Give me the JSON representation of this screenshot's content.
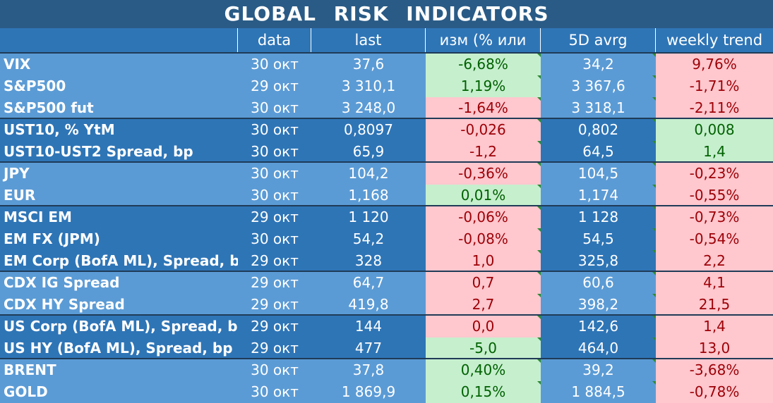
{
  "title": "GLOBAL   RISK   INDICATORS",
  "headers": [
    "",
    "data",
    "last",
    "изм (% или бп)",
    "5D avrg",
    "weekly trend"
  ],
  "colors": {
    "light_group": "#5b9bd5",
    "dark_group": "#2e75b6",
    "green_fill": "#c6efce",
    "green_text": "#006100",
    "red_fill": "#ffc7ce",
    "red_text": "#9c0006"
  },
  "rows": [
    {
      "name": "VIX",
      "date": "30 окт",
      "last": "37,6",
      "chg": "-6,68%",
      "chg_color": "green",
      "avg": "34,2",
      "trend": "9,76%",
      "trend_color": "red",
      "group": 0
    },
    {
      "name": "S&P500",
      "date": "29 окт",
      "last": "3 310,1",
      "chg": "1,19%",
      "chg_color": "green",
      "avg": "3 367,6",
      "trend": "-1,71%",
      "trend_color": "red",
      "group": 0
    },
    {
      "name": "S&P500 fut",
      "date": "30 окт",
      "last": "3 248,0",
      "chg": "-1,64%",
      "chg_color": "red",
      "avg": "3 318,1",
      "trend": "-2,11%",
      "trend_color": "red",
      "group": 0
    },
    {
      "name": "UST10, % YtM",
      "date": "30 окт",
      "last": "0,8097",
      "chg": "-0,026",
      "chg_color": "red",
      "avg": "0,802",
      "trend": "0,008",
      "trend_color": "green",
      "group": 1
    },
    {
      "name": "UST10-UST2 Spread, bp",
      "date": "30 окт",
      "last": "65,9",
      "chg": "-1,2",
      "chg_color": "red",
      "avg": "64,5",
      "trend": "1,4",
      "trend_color": "green",
      "group": 1
    },
    {
      "name": "JPY",
      "date": "30 окт",
      "last": "104,2",
      "chg": "-0,36%",
      "chg_color": "red",
      "avg": "104,5",
      "trend": "-0,23%",
      "trend_color": "red",
      "group": 0
    },
    {
      "name": "EUR",
      "date": "30 окт",
      "last": "1,168",
      "chg": "0,01%",
      "chg_color": "green",
      "avg": "1,174",
      "trend": "-0,55%",
      "trend_color": "red",
      "group": 0
    },
    {
      "name": "MSCI EM",
      "date": "29 окт",
      "last": "1 120",
      "chg": "-0,06%",
      "chg_color": "red",
      "avg": "1 128",
      "trend": "-0,73%",
      "trend_color": "red",
      "group": 1
    },
    {
      "name": "EM FX (JPM)",
      "date": "30 окт",
      "last": "54,2",
      "chg": "-0,08%",
      "chg_color": "red",
      "avg": "54,5",
      "trend": "-0,54%",
      "trend_color": "red",
      "group": 1
    },
    {
      "name": "EM Corp (BofA ML), Spread, bp",
      "date": "29 окт",
      "last": "328",
      "chg": "1,0",
      "chg_color": "red",
      "avg": "325,8",
      "trend": "2,2",
      "trend_color": "red",
      "group": 1
    },
    {
      "name": "CDX IG Spread",
      "date": "29 окт",
      "last": "64,7",
      "chg": "0,7",
      "chg_color": "red",
      "avg": "60,6",
      "trend": "4,1",
      "trend_color": "red",
      "group": 0
    },
    {
      "name": "CDX HY Spread",
      "date": "29 окт",
      "last": "419,8",
      "chg": "2,7",
      "chg_color": "red",
      "avg": "398,2",
      "trend": "21,5",
      "trend_color": "red",
      "group": 0
    },
    {
      "name": "US Corp (BofA ML), Spread, bp",
      "date": "29 окт",
      "last": "144",
      "chg": "0,0",
      "chg_color": "red",
      "avg": "142,6",
      "trend": "1,4",
      "trend_color": "red",
      "group": 1
    },
    {
      "name": "US HY (BofA ML), Spread, bp",
      "date": "29 окт",
      "last": "477",
      "chg": "-5,0",
      "chg_color": "green",
      "avg": "464,0",
      "trend": "13,0",
      "trend_color": "red",
      "group": 1
    },
    {
      "name": "BRENT",
      "date": "30 окт",
      "last": "37,8",
      "chg": "0,40%",
      "chg_color": "green",
      "avg": "39,2",
      "trend": "-3,68%",
      "trend_color": "red",
      "group": 0
    },
    {
      "name": "GOLD",
      "date": "30 окт",
      "last": "1 869,9",
      "chg": "0,15%",
      "chg_color": "green",
      "avg": "1 884,5",
      "trend": "-0,78%",
      "trend_color": "red",
      "group": 0
    }
  ]
}
